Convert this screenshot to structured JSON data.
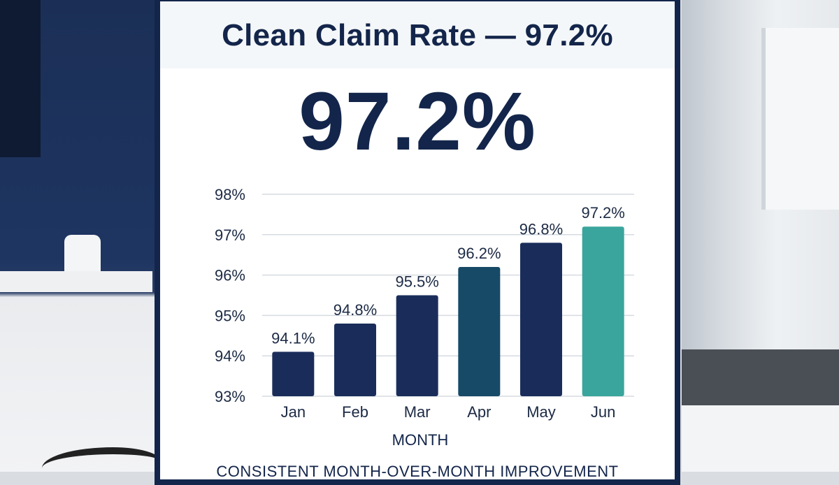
{
  "header": {
    "title": "Clean Claim Rate — 97.2%"
  },
  "headline": {
    "value": "97.2%"
  },
  "footer": {
    "text": "CONSISTENT MONTH-OVER-MONTH IMPROVEMENT"
  },
  "chart_data": {
    "type": "bar",
    "categories": [
      "Jan",
      "Feb",
      "Mar",
      "Apr",
      "May",
      "Jun"
    ],
    "values": [
      94.1,
      94.8,
      95.5,
      96.2,
      96.8,
      97.2
    ],
    "data_labels": [
      "94.1%",
      "94.8%",
      "95.5%",
      "96.2%",
      "96.8%",
      "97.2%"
    ],
    "xlabel": "MONTH",
    "ylabel": "",
    "ylim": [
      93,
      98
    ],
    "yticks": [
      93,
      94,
      95,
      96,
      97,
      98
    ],
    "ytick_labels": [
      "93%",
      "94%",
      "95%",
      "96%",
      "97%",
      "98%"
    ],
    "grid": true,
    "colors": [
      "#1a2d5a",
      "#1a2d5a",
      "#1a2d5a",
      "#164a66",
      "#1a2d5a",
      "#3aa59c"
    ]
  }
}
